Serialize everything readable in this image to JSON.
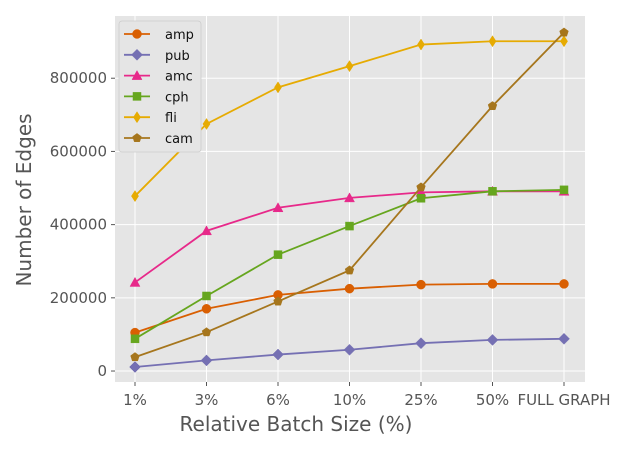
{
  "chart_data": {
    "type": "line",
    "title": "",
    "xlabel": "Relative Batch Size (%)",
    "ylabel": "Number of Edges",
    "categories": [
      "1%",
      "3%",
      "6%",
      "10%",
      "25%",
      "50%",
      "FULL GRAPH"
    ],
    "yticks": [
      0,
      200000,
      400000,
      600000,
      800000
    ],
    "ylim": [
      -30000,
      970000
    ],
    "grid": true,
    "legend_position": "top-left",
    "series": [
      {
        "name": "amp",
        "color": "#d95f02",
        "marker": "circle",
        "values": [
          105000,
          170000,
          208000,
          225000,
          236000,
          238000,
          238000
        ]
      },
      {
        "name": "pub",
        "color": "#7570b3",
        "marker": "diamond",
        "values": [
          11000,
          29000,
          45000,
          58000,
          76000,
          85000,
          88000
        ]
      },
      {
        "name": "amc",
        "color": "#e7298a",
        "marker": "triangle",
        "values": [
          242000,
          383000,
          446000,
          473000,
          488000,
          491000,
          491000
        ]
      },
      {
        "name": "cph",
        "color": "#66a61e",
        "marker": "square",
        "values": [
          88000,
          205000,
          318000,
          396000,
          472000,
          491000,
          495000
        ]
      },
      {
        "name": "fli",
        "color": "#e6ab02",
        "marker": "thin-diamond",
        "values": [
          478000,
          675000,
          775000,
          833000,
          892000,
          901000,
          901000
        ]
      },
      {
        "name": "cam",
        "color": "#a6761d",
        "marker": "pentagon",
        "values": [
          38000,
          106000,
          190000,
          275000,
          502000,
          724000,
          925000
        ]
      }
    ]
  }
}
